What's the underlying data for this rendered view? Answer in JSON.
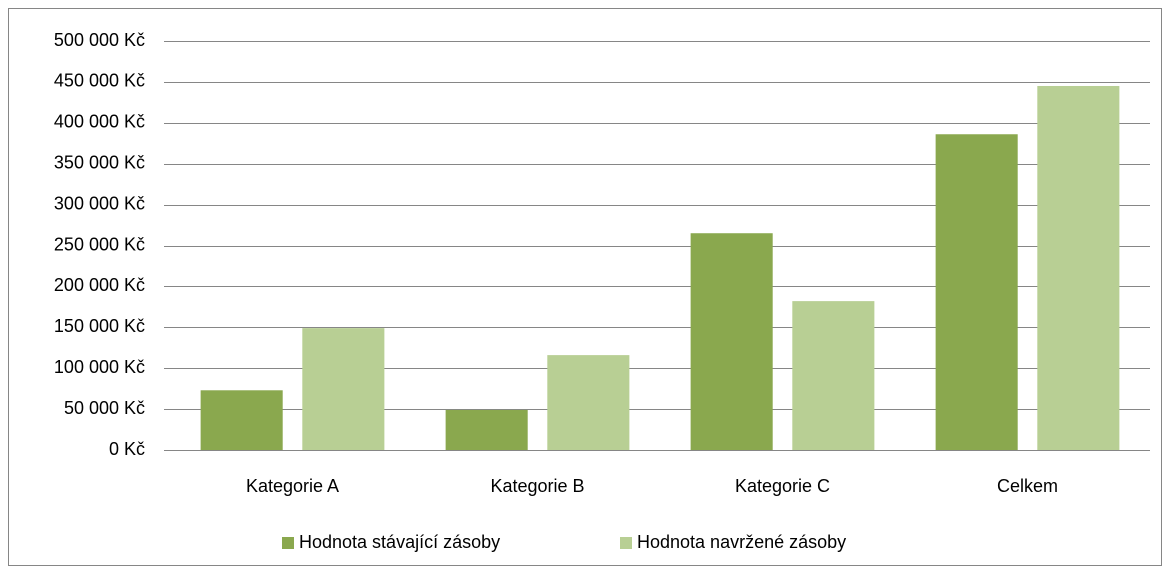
{
  "chart_data": {
    "type": "bar",
    "categories": [
      "Kategorie A",
      "Kategorie B",
      "Kategorie C",
      "Celkem"
    ],
    "series": [
      {
        "name": "Hodnota stávající zásoby",
        "color": "#8aa84e",
        "values": [
          73000,
          49000,
          265000,
          386000
        ]
      },
      {
        "name": "Hodnota navržené zásoby",
        "color": "#b8cf94",
        "values": [
          149000,
          116000,
          182000,
          445000
        ]
      }
    ],
    "ylim": [
      0,
      500000
    ],
    "yticks": [
      {
        "value": 0,
        "label": "0 Kč"
      },
      {
        "value": 50000,
        "label": "50 000 Kč"
      },
      {
        "value": 100000,
        "label": "100 000 Kč"
      },
      {
        "value": 150000,
        "label": "150 000 Kč"
      },
      {
        "value": 200000,
        "label": "200 000 Kč"
      },
      {
        "value": 250000,
        "label": "250 000 Kč"
      },
      {
        "value": 300000,
        "label": "300 000 Kč"
      },
      {
        "value": 350000,
        "label": "350 000 Kč"
      },
      {
        "value": 400000,
        "label": "400 000 Kč"
      },
      {
        "value": 450000,
        "label": "450 000 Kč"
      },
      {
        "value": 500000,
        "label": "500 000 Kč"
      }
    ],
    "grid": true,
    "legend": "bottom"
  }
}
